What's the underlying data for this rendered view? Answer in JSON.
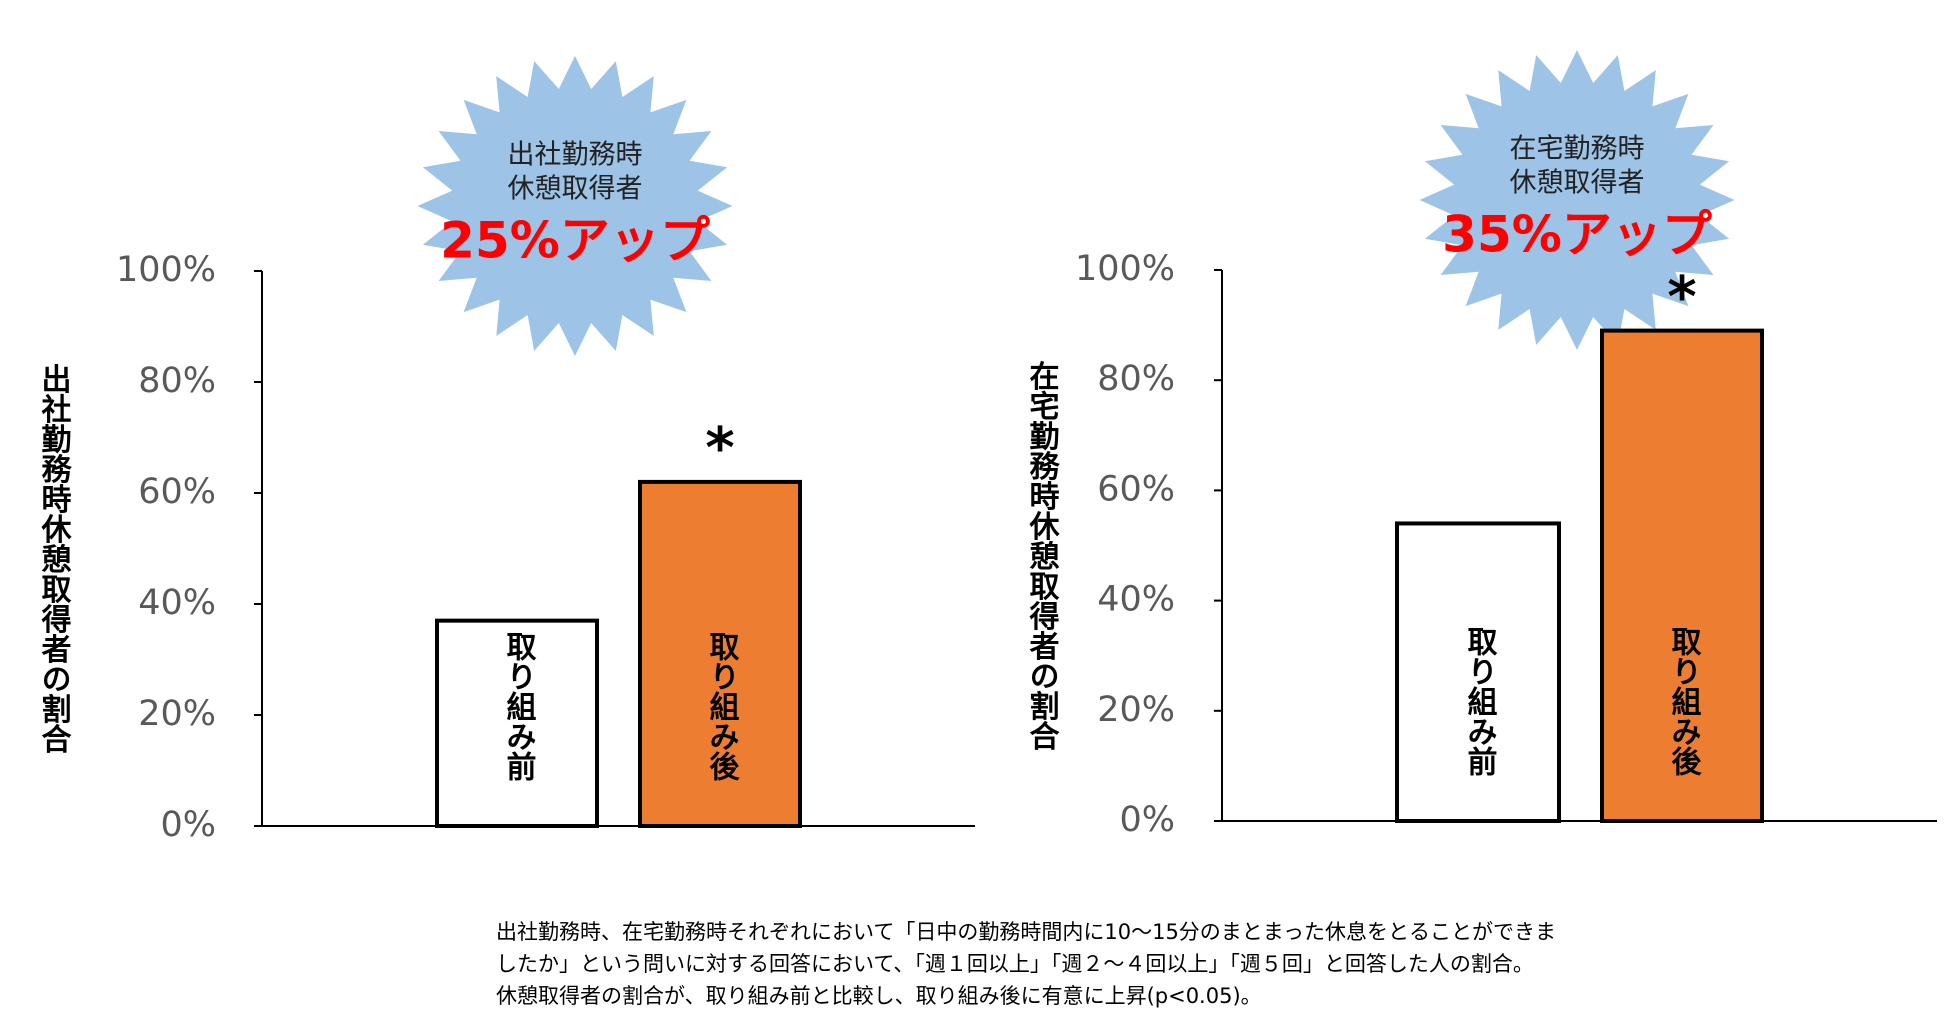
{
  "chart_data": [
    {
      "type": "bar",
      "badge_lines": [
        "出社勤務時",
        "休憩取得者"
      ],
      "badge_highlight": "25%アップ",
      "ylabel": "出社勤務時休憩取得者の割合",
      "categories": [
        "取り組み前",
        "取り組み後"
      ],
      "values": [
        37,
        62
      ],
      "colors": [
        "#ffffff",
        "#ed7d31"
      ],
      "significance": [
        null,
        "*"
      ],
      "ylim": [
        0,
        100
      ],
      "yticks": [
        {
          "value": 0,
          "label": "0%"
        },
        {
          "value": 20,
          "label": "20%"
        },
        {
          "value": 40,
          "label": "40%"
        },
        {
          "value": 60,
          "label": "60%"
        },
        {
          "value": 80,
          "label": "80%"
        },
        {
          "value": 100,
          "label": "100%"
        }
      ],
      "grid": false
    },
    {
      "type": "bar",
      "badge_lines": [
        "在宅勤務時",
        "休憩取得者"
      ],
      "badge_highlight": "35%アップ",
      "ylabel": "在宅勤務時休憩取得者の割合",
      "categories": [
        "取り組み前",
        "取り組み後"
      ],
      "values": [
        54,
        89
      ],
      "colors": [
        "#ffffff",
        "#ed7d31"
      ],
      "significance": [
        null,
        "*"
      ],
      "ylim": [
        0,
        100
      ],
      "yticks": [
        {
          "value": 0,
          "label": "0%"
        },
        {
          "value": 20,
          "label": "20%"
        },
        {
          "value": 40,
          "label": "40%"
        },
        {
          "value": 60,
          "label": "60%"
        },
        {
          "value": 80,
          "label": "80%"
        },
        {
          "value": 100,
          "label": "100%"
        }
      ],
      "grid": false
    }
  ],
  "footnote": [
    "出社勤務時、在宅勤務時それぞれにおいて「日中の勤務時間内に10〜15分のまとまった休息をとることができま",
    "したか」という問いに対する回答において、「週１回以上」「週２〜４回以上」「週５回」と回答した人の割合。",
    "休憩取得者の割合が、取り組み前と比較し、取り組み後に有意に上昇(p<0.05)。"
  ]
}
